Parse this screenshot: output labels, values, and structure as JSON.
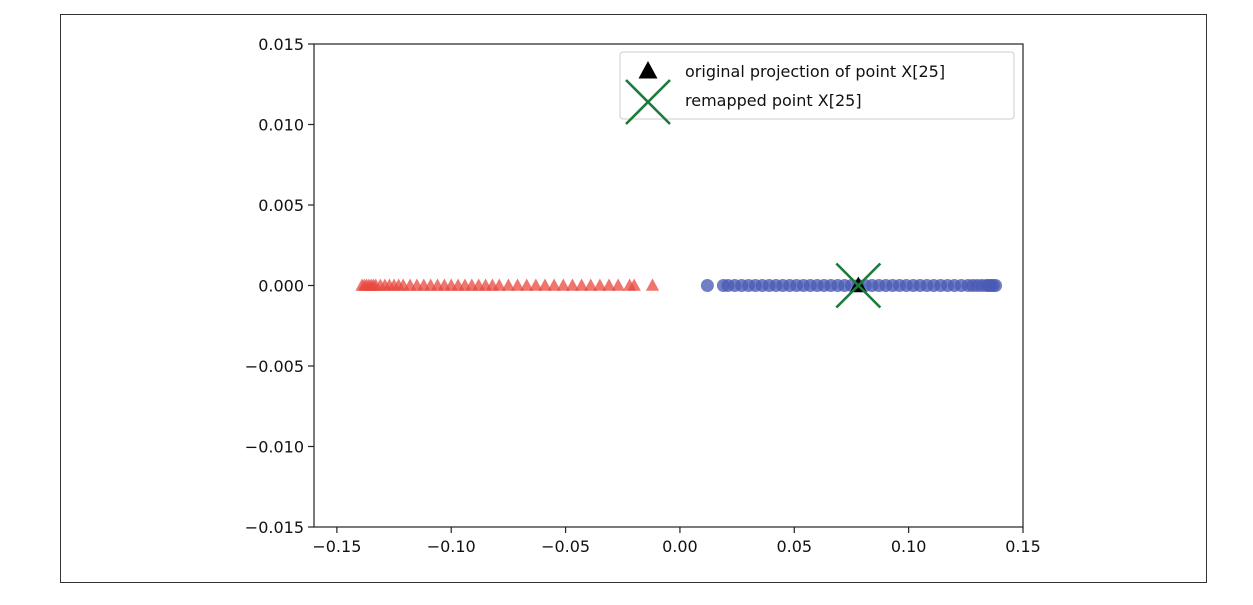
{
  "chart_data": {
    "type": "scatter",
    "title": "",
    "xlabel": "",
    "ylabel": "",
    "xlim": [
      -0.16,
      0.15
    ],
    "ylim": [
      -0.015,
      0.015
    ],
    "xticks": [
      -0.15,
      -0.1,
      -0.05,
      0.0,
      0.05,
      0.1,
      0.15
    ],
    "xtick_labels": [
      "−0.15",
      "−0.10",
      "−0.05",
      "0.00",
      "0.05",
      "0.10",
      "0.15"
    ],
    "yticks": [
      0.015,
      0.01,
      0.005,
      0.0,
      -0.005,
      -0.01,
      -0.015
    ],
    "ytick_labels": [
      "0.015",
      "0.010",
      "0.005",
      "0.000",
      "−0.005",
      "−0.010",
      "−0.015"
    ],
    "grid": false,
    "legend_position": "top-right",
    "series": [
      {
        "marker": "triangle",
        "color": "#e8483f",
        "x": [
          -0.139,
          -0.138,
          -0.137,
          -0.136,
          -0.135,
          -0.134,
          -0.133,
          -0.131,
          -0.129,
          -0.127,
          -0.125,
          -0.123,
          -0.121,
          -0.118,
          -0.115,
          -0.112,
          -0.109,
          -0.106,
          -0.103,
          -0.1,
          -0.097,
          -0.094,
          -0.091,
          -0.088,
          -0.085,
          -0.082,
          -0.079,
          -0.075,
          -0.071,
          -0.067,
          -0.063,
          -0.059,
          -0.055,
          -0.051,
          -0.047,
          -0.043,
          -0.039,
          -0.035,
          -0.031,
          -0.027,
          -0.022,
          -0.02,
          -0.012
        ],
        "y": [
          0,
          0,
          0,
          0,
          0,
          0,
          0,
          0,
          0,
          0,
          0,
          0,
          0,
          0,
          0,
          0,
          0,
          0,
          0,
          0,
          0,
          0,
          0,
          0,
          0,
          0,
          0,
          0,
          0,
          0,
          0,
          0,
          0,
          0,
          0,
          0,
          0,
          0,
          0,
          0,
          0,
          0,
          0
        ]
      },
      {
        "marker": "circle",
        "color": "#4a5bb5",
        "x": [
          0.012,
          0.019,
          0.021,
          0.024,
          0.027,
          0.03,
          0.033,
          0.036,
          0.039,
          0.042,
          0.045,
          0.048,
          0.051,
          0.054,
          0.057,
          0.06,
          0.063,
          0.066,
          0.069,
          0.072,
          0.075,
          0.078,
          0.081,
          0.084,
          0.087,
          0.09,
          0.093,
          0.096,
          0.099,
          0.102,
          0.105,
          0.108,
          0.111,
          0.114,
          0.117,
          0.12,
          0.123,
          0.126,
          0.128,
          0.13,
          0.132,
          0.134,
          0.135,
          0.136,
          0.137,
          0.138
        ],
        "y": [
          0,
          0,
          0,
          0,
          0,
          0,
          0,
          0,
          0,
          0,
          0,
          0,
          0,
          0,
          0,
          0,
          0,
          0,
          0,
          0,
          0,
          0,
          0,
          0,
          0,
          0,
          0,
          0,
          0,
          0,
          0,
          0,
          0,
          0,
          0,
          0,
          0,
          0,
          0,
          0,
          0,
          0,
          0,
          0,
          0,
          0
        ]
      },
      {
        "name": "original projection of point X[25]",
        "marker": "triangle",
        "color": "#000000",
        "x": [
          0.078
        ],
        "y": [
          0
        ]
      },
      {
        "name": "remapped point X[25]",
        "marker": "x",
        "color": "#1e7a3c",
        "x": [
          0.078
        ],
        "y": [
          0
        ]
      }
    ]
  }
}
